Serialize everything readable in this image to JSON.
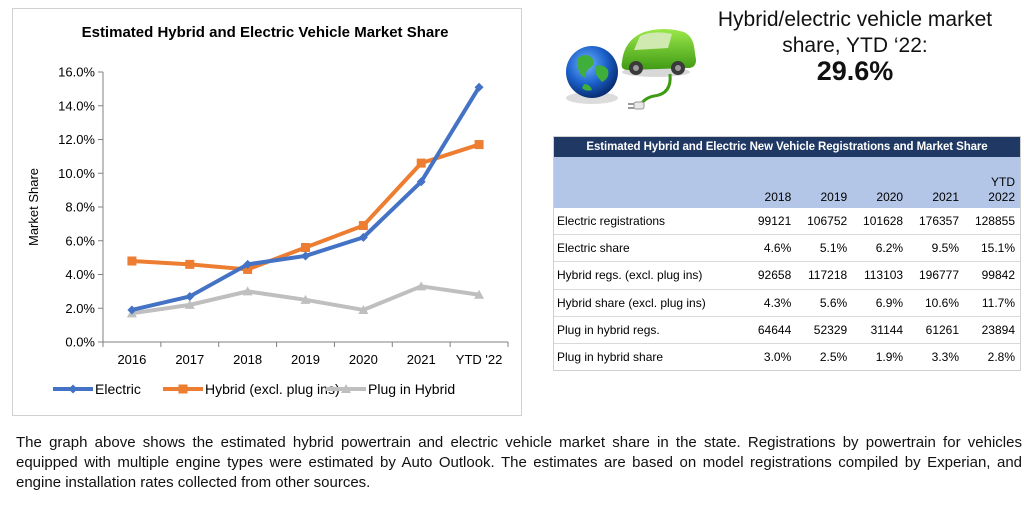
{
  "chart_data": {
    "type": "line",
    "title": "Estimated Hybrid and Electric Vehicle Market Share",
    "xlabel": "",
    "ylabel": "Market Share",
    "categories": [
      "2016",
      "2017",
      "2018",
      "2019",
      "2020",
      "2021",
      "YTD '22"
    ],
    "y_ticks": [
      "0.0%",
      "2.0%",
      "4.0%",
      "6.0%",
      "8.0%",
      "10.0%",
      "12.0%",
      "14.0%",
      "16.0%"
    ],
    "ylim": [
      0,
      16
    ],
    "grid": false,
    "legend_position": "bottom",
    "series": [
      {
        "name": "Electric",
        "color": "#4472c4",
        "marker": "diamond",
        "values": [
          1.9,
          2.7,
          4.6,
          5.1,
          6.2,
          9.5,
          15.1
        ]
      },
      {
        "name": "Hybrid (excl. plug ins)",
        "color": "#ed7d31",
        "marker": "square",
        "values": [
          4.8,
          4.6,
          4.3,
          5.6,
          6.9,
          10.6,
          11.7
        ]
      },
      {
        "name": "Plug in Hybrid",
        "color": "#bfbfbf",
        "marker": "triangle",
        "values": [
          1.7,
          2.2,
          3.0,
          2.5,
          1.9,
          3.3,
          2.8
        ]
      }
    ]
  },
  "promo": {
    "stat_label": "Hybrid/electric vehicle market share, YTD ‘22:",
    "stat_value": "29.6%",
    "graphic_icons": [
      "globe-icon",
      "electric-car-icon",
      "plug-icon"
    ]
  },
  "table": {
    "title": "Estimated Hybrid and Electric New Vehicle Registrations and Market Share",
    "columns": [
      "2018",
      "2019",
      "2020",
      "2021",
      "YTD 2022"
    ],
    "rows": [
      {
        "label": "Electric registrations",
        "values": [
          "99121",
          "106752",
          "101628",
          "176357",
          "128855"
        ]
      },
      {
        "label": "Electric share",
        "values": [
          "4.6%",
          "5.1%",
          "6.2%",
          "9.5%",
          "15.1%"
        ]
      },
      {
        "label": "Hybrid regs. (excl. plug ins)",
        "values": [
          "92658",
          "117218",
          "113103",
          "196777",
          "99842"
        ]
      },
      {
        "label": "Hybrid share (excl. plug ins)",
        "values": [
          "4.3%",
          "5.6%",
          "6.9%",
          "10.6%",
          "11.7%"
        ]
      },
      {
        "label": "Plug in hybrid regs.",
        "values": [
          "64644",
          "52329",
          "31144",
          "61261",
          "23894"
        ]
      },
      {
        "label": "Plug in hybrid share",
        "values": [
          "3.0%",
          "2.5%",
          "1.9%",
          "3.3%",
          "2.8%"
        ]
      }
    ]
  },
  "caption": "The graph above shows the estimated hybrid powertrain and electric vehicle market share in the state. Registrations by powertrain for vehicles equipped with multiple engine types were estimated by Auto Outlook. The estimates are based on model registrations compiled by Experian, and engine installation rates collected from other sources."
}
